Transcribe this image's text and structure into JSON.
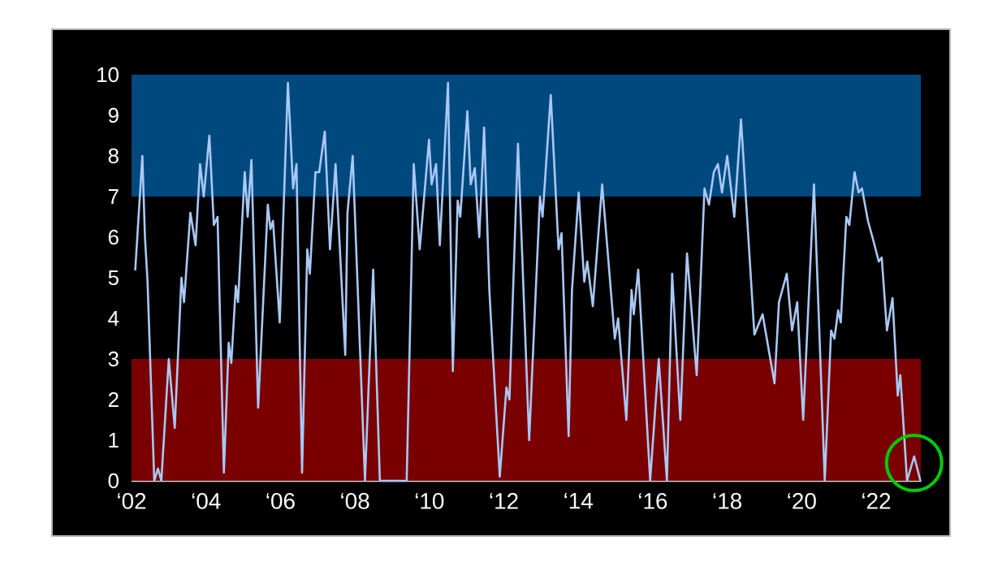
{
  "chart_data": {
    "type": "line",
    "color": "#a9c8f5",
    "x": [
      2.1,
      2.29,
      2.36,
      2.43,
      2.61,
      2.71,
      2.8,
      3.0,
      3.16,
      3.34,
      3.41,
      3.58,
      3.72,
      3.84,
      3.94,
      4.09,
      4.21,
      4.31,
      4.48,
      4.61,
      4.68,
      4.8,
      4.86,
      5.04,
      5.12,
      5.22,
      5.4,
      5.66,
      5.73,
      5.8,
      5.98,
      6.2,
      6.34,
      6.43,
      6.58,
      6.72,
      6.79,
      6.94,
      7.04,
      7.19,
      7.33,
      7.48,
      7.74,
      7.8,
      7.94,
      8.27,
      8.49,
      8.67,
      9.39,
      9.58,
      9.74,
      9.99,
      10.06,
      10.18,
      10.28,
      10.5,
      10.63,
      10.76,
      10.83,
      11.02,
      11.11,
      11.22,
      11.34,
      11.47,
      11.61,
      11.89,
      12.07,
      12.15,
      12.38,
      12.68,
      12.97,
      13.04,
      13.26,
      13.47,
      13.55,
      13.74,
      13.83,
      14.01,
      14.16,
      14.24,
      14.39,
      14.64,
      14.98,
      15.07,
      15.29,
      15.43,
      15.49,
      15.61,
      15.93,
      16.16,
      16.38,
      16.52,
      16.74,
      16.92,
      17.18,
      17.39,
      17.51,
      17.64,
      17.75,
      17.86,
      18.0,
      18.19,
      18.37,
      18.73,
      18.95,
      19.27,
      19.39,
      19.6,
      19.74,
      19.88,
      20.04,
      20.33,
      20.62,
      20.79,
      20.88,
      20.98,
      21.05,
      21.2,
      21.28,
      21.42,
      21.53,
      21.62,
      21.78,
      21.93,
      22.07,
      22.15,
      22.29,
      22.44,
      22.58,
      22.65,
      22.83,
      23.02,
      23.19
    ],
    "values": [
      5.2,
      8.0,
      6.0,
      4.9,
      0,
      0.3,
      0,
      3.0,
      1.3,
      5.0,
      4.4,
      6.6,
      5.8,
      7.8,
      7.0,
      8.5,
      6.3,
      6.5,
      0.2,
      3.4,
      2.9,
      4.8,
      4.4,
      7.6,
      6.5,
      7.9,
      1.8,
      6.8,
      6.2,
      6.4,
      3.9,
      9.8,
      7.2,
      7.8,
      0.2,
      5.7,
      5.1,
      7.6,
      7.6,
      8.6,
      5.7,
      7.8,
      3.1,
      6.6,
      8.0,
      0,
      5.2,
      0,
      0,
      7.8,
      5.7,
      8.4,
      7.3,
      7.8,
      5.8,
      9.8,
      2.7,
      6.9,
      6.5,
      9.1,
      7.3,
      7.7,
      6.0,
      8.7,
      4.7,
      0.1,
      2.3,
      2.0,
      8.3,
      1.0,
      7.0,
      6.5,
      9.5,
      5.7,
      6.1,
      1.1,
      4.7,
      7.1,
      4.9,
      5.4,
      4.3,
      7.3,
      3.5,
      4.0,
      1.5,
      4.7,
      4.1,
      5.2,
      0,
      3.0,
      0,
      5.1,
      1.5,
      5.6,
      2.6,
      7.2,
      6.8,
      7.6,
      7.8,
      7.1,
      8.0,
      6.5,
      8.9,
      3.6,
      4.1,
      2.4,
      4.4,
      5.1,
      3.7,
      4.4,
      1.5,
      7.3,
      0,
      3.7,
      3.5,
      4.2,
      3.9,
      6.5,
      6.3,
      7.6,
      7.1,
      7.2,
      6.4,
      5.9,
      5.4,
      5.5,
      3.7,
      4.5,
      2.1,
      2.6,
      0,
      0.6,
      0
    ],
    "xlim": [
      2,
      23.2
    ],
    "ylim": [
      0,
      10
    ],
    "xticks": [
      {
        "value": 2,
        "label": "‘02"
      },
      {
        "value": 4,
        "label": "‘04"
      },
      {
        "value": 6,
        "label": "‘06"
      },
      {
        "value": 8,
        "label": "‘08"
      },
      {
        "value": 10,
        "label": "‘10"
      },
      {
        "value": 12,
        "label": "‘12"
      },
      {
        "value": 14,
        "label": "‘14"
      },
      {
        "value": 16,
        "label": "‘16"
      },
      {
        "value": 18,
        "label": "‘18"
      },
      {
        "value": 20,
        "label": "‘20"
      },
      {
        "value": 22,
        "label": "‘22"
      }
    ],
    "yticks": [
      0,
      1,
      2,
      3,
      4,
      5,
      6,
      7,
      8,
      9,
      10
    ],
    "bands": [
      {
        "axis": "y",
        "from": 7,
        "to": 10,
        "color": "#00497f"
      },
      {
        "axis": "y",
        "from": 0,
        "to": 3,
        "color": "#7a0000"
      }
    ]
  }
}
